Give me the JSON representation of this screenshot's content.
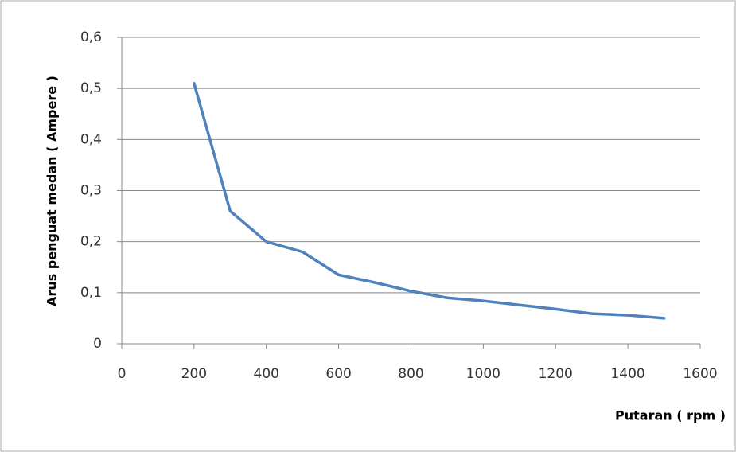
{
  "chart_data": {
    "type": "line",
    "x_label": "Putaran ( rpm )",
    "y_label": "Arus penguat medan ( Ampere )",
    "x": [
      200,
      300,
      400,
      500,
      600,
      700,
      800,
      900,
      1000,
      1100,
      1200,
      1300,
      1400,
      1500
    ],
    "series": [
      {
        "color": "#4f81bd",
        "values": [
          0.51,
          0.26,
          0.2,
          0.18,
          0.135,
          0.12,
          0.103,
          0.09,
          0.084,
          0.076,
          0.068,
          0.059,
          0.056,
          0.05
        ]
      }
    ],
    "xlim": [
      0,
      1600
    ],
    "xticks": [
      0,
      200,
      400,
      600,
      800,
      1000,
      1200,
      1400,
      1600
    ],
    "ylim": [
      0,
      0.6
    ],
    "yticks": [
      0,
      {
        "value": 0.1,
        "label": "0,1"
      },
      {
        "value": 0.2,
        "label": "0,2"
      },
      {
        "value": 0.3,
        "label": "0,3"
      },
      {
        "value": 0.4,
        "label": "0,4"
      },
      {
        "value": 0.5,
        "label": "0,5"
      },
      {
        "value": 0.6,
        "label": "0,6"
      }
    ],
    "grid": true
  }
}
